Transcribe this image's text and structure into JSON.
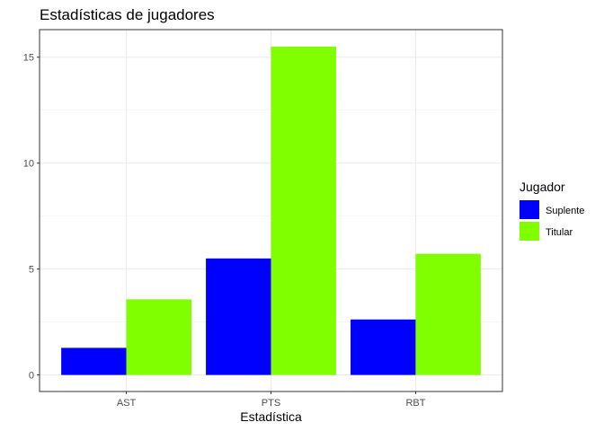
{
  "chart_data": {
    "type": "bar",
    "title": "Estadísticas de jugadores",
    "xlabel": "Estadística",
    "ylabel": "",
    "categories": [
      "AST",
      "PTS",
      "RBT"
    ],
    "series": [
      {
        "name": "Suplente",
        "color": "#0000FF",
        "values": [
          1.28,
          5.5,
          2.62
        ]
      },
      {
        "name": "Titular",
        "color": "#7FFF00",
        "values": [
          3.57,
          15.5,
          5.72
        ]
      }
    ],
    "y_ticks": [
      0,
      5,
      10,
      15
    ],
    "ylim": [
      -0.78,
      16.3
    ],
    "grid": true,
    "legend": {
      "title": "Jugador",
      "placement": "right"
    }
  }
}
